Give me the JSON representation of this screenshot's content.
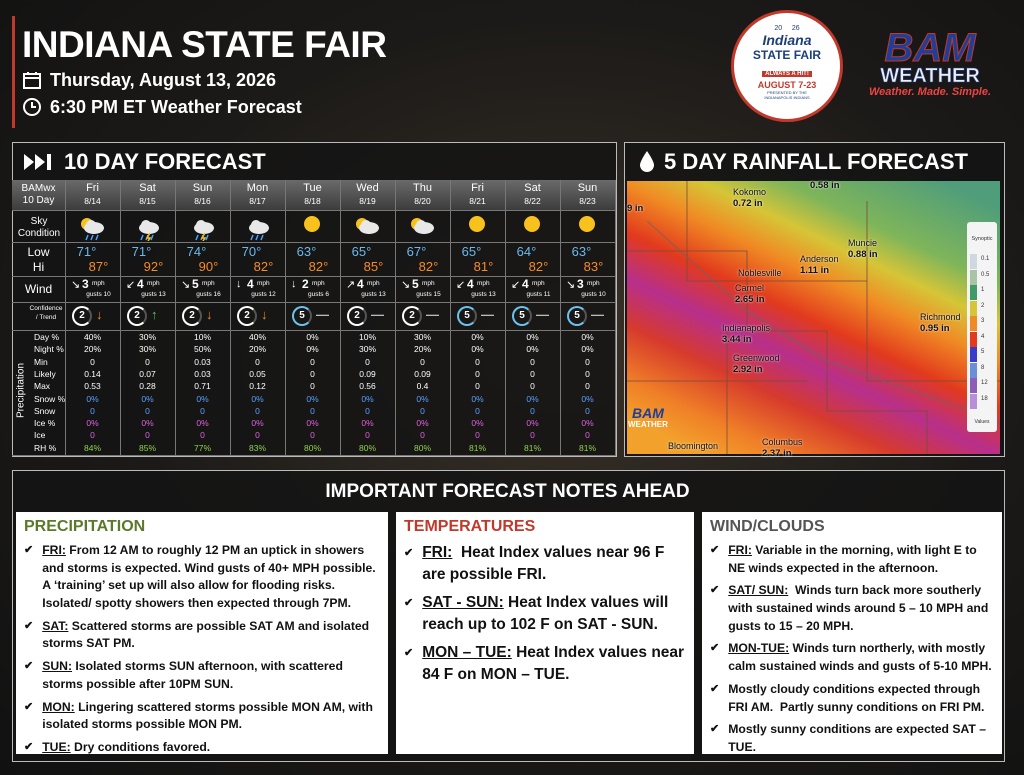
{
  "header": {
    "title": "INDIANA STATE FAIR",
    "date": "Thursday, August 13, 2026",
    "time": "6:30 PM ET Weather Forecast"
  },
  "fair_logo": {
    "year_left": "20",
    "year_right": "26",
    "name": "Indiana",
    "subname": "STATE FAIR",
    "tagline": "ALWAYS A HIT!",
    "dates": "AUGUST 7-23",
    "presenter": "PRESENTED BY THE INDIANAPOLIS INDIANS"
  },
  "bam_logo": {
    "name": "BAM",
    "sub": "WEATHER",
    "slogan": "Weather. Made. Simple."
  },
  "forecast": {
    "title": "10 DAY FORECAST",
    "corner": [
      "BAMwx",
      "10 Day"
    ],
    "row_labels": {
      "sky": "Sky Condition",
      "low": "Low",
      "hi": "Hi",
      "wind": "Wind",
      "confidence": "Confidence / Trend"
    },
    "precip_label": "Precipitation",
    "precip_rows": [
      "Day %",
      "Night %",
      "Min",
      "Likely",
      "Max",
      "Snow %",
      "Snow",
      "Ice %",
      "Ice",
      "RH %"
    ],
    "wind_unit": "mph",
    "days": [
      {
        "day": "Fri",
        "date": "8/14",
        "low": "71°",
        "hi": "87°",
        "arrow": "↘",
        "wind": "3",
        "gusts": "gusts 10",
        "confidence": "2",
        "trend": "↓",
        "precip": [
          "40%",
          "20%",
          "0",
          "0.14",
          "0.53",
          "0%",
          "0",
          "0%",
          "0",
          "84%"
        ]
      },
      {
        "day": "Sat",
        "date": "8/15",
        "low": "71°",
        "hi": "92°",
        "arrow": "↙",
        "wind": "4",
        "gusts": "gusts 13",
        "confidence": "2",
        "trend": "↑",
        "precip": [
          "30%",
          "30%",
          "0",
          "0.07",
          "0.28",
          "0%",
          "0",
          "0%",
          "0",
          "85%"
        ]
      },
      {
        "day": "Sun",
        "date": "8/16",
        "low": "74°",
        "hi": "90°",
        "arrow": "↘",
        "wind": "5",
        "gusts": "gusts 16",
        "confidence": "2",
        "trend": "↓",
        "precip": [
          "10%",
          "50%",
          "0.03",
          "0.03",
          "0.71",
          "0%",
          "0",
          "0%",
          "0",
          "77%"
        ]
      },
      {
        "day": "Mon",
        "date": "8/17",
        "low": "70°",
        "hi": "82°",
        "arrow": "↓",
        "wind": "4",
        "gusts": "gusts 12",
        "confidence": "2",
        "trend": "↓",
        "precip": [
          "40%",
          "20%",
          "0",
          "0.05",
          "0.12",
          "0%",
          "0",
          "0%",
          "0",
          "83%"
        ]
      },
      {
        "day": "Tue",
        "date": "8/18",
        "low": "63°",
        "hi": "82°",
        "arrow": "↓",
        "wind": "2",
        "gusts": "gusts 6",
        "confidence": "5",
        "trend": "—",
        "precip": [
          "0%",
          "0%",
          "0",
          "0",
          "0",
          "0%",
          "0",
          "0%",
          "0",
          "80%"
        ]
      },
      {
        "day": "Wed",
        "date": "8/19",
        "low": "65°",
        "hi": "85°",
        "arrow": "↗",
        "wind": "4",
        "gusts": "gusts 13",
        "confidence": "2",
        "trend": "—",
        "precip": [
          "10%",
          "30%",
          "0",
          "0.09",
          "0.56",
          "0%",
          "0",
          "0%",
          "0",
          "80%"
        ]
      },
      {
        "day": "Thu",
        "date": "8/20",
        "low": "67°",
        "hi": "82°",
        "arrow": "↘",
        "wind": "5",
        "gusts": "gusts 15",
        "confidence": "2",
        "trend": "—",
        "precip": [
          "30%",
          "20%",
          "0",
          "0.09",
          "0.4",
          "0%",
          "0",
          "0%",
          "0",
          "80%"
        ]
      },
      {
        "day": "Fri",
        "date": "8/21",
        "low": "65°",
        "hi": "81°",
        "arrow": "↙",
        "wind": "4",
        "gusts": "gusts 13",
        "confidence": "5",
        "trend": "—",
        "precip": [
          "0%",
          "0%",
          "0",
          "0",
          "0",
          "0%",
          "0",
          "0%",
          "0",
          "81%"
        ]
      },
      {
        "day": "Sat",
        "date": "8/22",
        "low": "64°",
        "hi": "82°",
        "arrow": "↙",
        "wind": "4",
        "gusts": "gusts 11",
        "confidence": "5",
        "trend": "—",
        "precip": [
          "0%",
          "0%",
          "0",
          "0",
          "0",
          "0%",
          "0",
          "0%",
          "0",
          "81%"
        ]
      },
      {
        "day": "Sun",
        "date": "8/23",
        "low": "63°",
        "hi": "83°",
        "arrow": "↘",
        "wind": "3",
        "gusts": "gusts 10",
        "confidence": "5",
        "trend": "—",
        "precip": [
          "0%",
          "0%",
          "0",
          "0",
          "0",
          "0%",
          "0",
          "0%",
          "0",
          "81%"
        ]
      }
    ]
  },
  "rainfall": {
    "title": "5 DAY RAINFALL FORECAST",
    "places": [
      {
        "city": "Kokomo",
        "amount": "0.72 in"
      },
      {
        "amount": "0.58 in"
      },
      {
        "amount": "9 in"
      },
      {
        "city": "Muncie",
        "amount": "0.88 in"
      },
      {
        "city": "Anderson",
        "amount": "1.11 in"
      },
      {
        "city": "Noblesville"
      },
      {
        "city": "Carmel",
        "amount": "2.65 in"
      },
      {
        "city": "Richmond",
        "amount": "0.95 in"
      },
      {
        "city": "Indianapolis",
        "amount": "3.44 in"
      },
      {
        "city": "Greenwood",
        "amount": "2.92 in"
      },
      {
        "city": "Columbus",
        "amount": "2.37 in"
      },
      {
        "city": "Bloomington"
      }
    ],
    "legend_title": "Synoptic",
    "legend": [
      "0.1",
      "0.5",
      "1",
      "2",
      "3",
      "4",
      "5",
      "8",
      "12",
      "18"
    ],
    "legend_footer": "Values",
    "watermark": [
      "BAM",
      "WEATHER"
    ]
  },
  "notes": {
    "title": "IMPORTANT FORECAST NOTES AHEAD",
    "columns": [
      {
        "heading": "PRECIPITATION",
        "items": [
          {
            "lead": "FRI:",
            "text": " From 12 AM to roughly 12 PM an uptick in showers and storms is expected. Wind gusts of 40+ MPH possible. A ‘training’ set up will also allow for flooding risks. Isolated/ spotty showers then expected through 7PM."
          },
          {
            "lead": "SAT:",
            "text": " Scattered storms are possible SAT AM and isolated storms SAT PM."
          },
          {
            "lead": "SUN:",
            "text": " Isolated storms SUN afternoon, with scattered storms possible after 10PM SUN."
          },
          {
            "lead": "MON:",
            "text": " Lingering scattered storms possible MON AM, with isolated storms possible MON PM."
          },
          {
            "lead": "TUE:",
            "text": " Dry conditions favored."
          }
        ]
      },
      {
        "heading": "TEMPERATURES",
        "items": [
          {
            "lead": "FRI:",
            "text": "  Heat Index values near 96 F are possible FRI."
          },
          {
            "lead": "SAT - SUN:",
            "text": " Heat Index values will reach up to 102 F on SAT - SUN."
          },
          {
            "lead": "MON – TUE:",
            "text": " Heat Index values near 84 F on MON – TUE."
          }
        ]
      },
      {
        "heading": "WIND/CLOUDS",
        "items": [
          {
            "lead": "FRI:",
            "text": " Variable in the morning, with light E to NE winds expected in the afternoon."
          },
          {
            "lead": "SAT/ SUN:",
            "text": "  Winds turn back more southerly with sustained winds around 5 – 10 MPH and gusts to 15 – 20 MPH."
          },
          {
            "lead": "MON-TUE:",
            "text": " Winds turn northerly, with mostly calm sustained winds and gusts of 5-10 MPH."
          },
          {
            "text": "Mostly cloudy conditions expected through FRI AM.  Partly sunny conditions on FRI PM."
          },
          {
            "text": "Mostly sunny conditions are expected SAT – TUE."
          }
        ]
      }
    ]
  }
}
